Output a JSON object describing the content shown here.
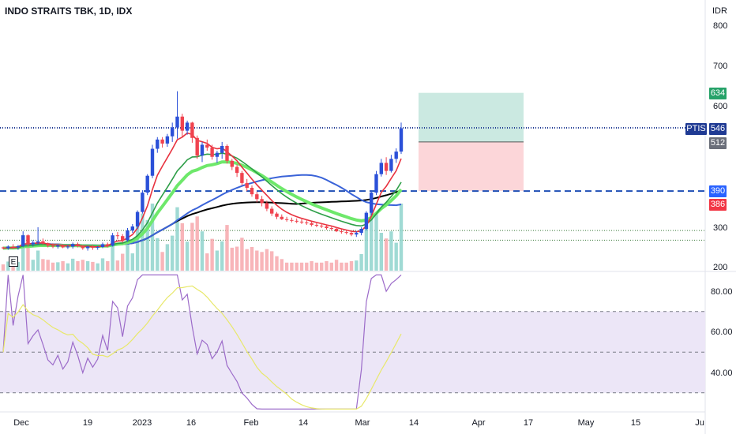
{
  "header": {
    "symbol_title": "INDO STRAITS TBK, 1D, IDX",
    "currency": "IDR"
  },
  "price_axis": {
    "ticks": [
      "800",
      "700",
      "600",
      "300",
      "200"
    ],
    "tick_values": [
      800,
      700,
      600,
      300,
      200
    ]
  },
  "rsi_axis": {
    "ticks": [
      "80.00",
      "60.00",
      "40.00"
    ],
    "tick_values": [
      80,
      60,
      40
    ],
    "upper_band": 70,
    "middle_band": 50,
    "lower_band": 30
  },
  "x_axis": {
    "labels": [
      "Dec",
      "19",
      "2023",
      "16",
      "Feb",
      "14",
      "Mar",
      "14",
      "Apr",
      "17",
      "May",
      "15",
      "Ju"
    ]
  },
  "badges": {
    "target": {
      "text": "634",
      "color": "#26a269"
    },
    "symbol": {
      "text": "PTIS",
      "color": "#1f3a93"
    },
    "last": {
      "text": "546",
      "color": "#1f3a93"
    },
    "entry": {
      "text": "512",
      "color": "#6b6f7a"
    },
    "level": {
      "text": "390",
      "color": "#2962ff"
    },
    "stop": {
      "text": "386",
      "color": "#f23645"
    }
  },
  "marker": {
    "text": "E"
  },
  "colors": {
    "up": "#2b50d8",
    "down": "#f0434f",
    "ema_red": "#e8323f",
    "ema_green": "#2e9e48",
    "sma_blue": "#3a63d8",
    "ema_lightgreen": "#6ee86b",
    "sma_black": "#000000",
    "rsi": "#9c6bc9",
    "rsi_ma": "#e8e86a",
    "rsi_band_fill": "#ece6f7",
    "target_zone": "#cbe9e1",
    "stop_zone": "#fcd6d9",
    "level_line": "#1f4fb5",
    "volume_up": "#8fd3cc",
    "volume_down": "#f7a8ad"
  },
  "chart_data": {
    "type": "candlestick",
    "series": [
      {
        "name": "candles",
        "ohlc": [
          [
            250,
            252,
            245,
            248
          ],
          [
            248,
            255,
            244,
            252
          ],
          [
            252,
            258,
            246,
            250
          ],
          [
            250,
            256,
            244,
            253
          ],
          [
            253,
            290,
            250,
            280
          ],
          [
            280,
            282,
            252,
            258
          ],
          [
            258,
            268,
            252,
            262
          ],
          [
            262,
            300,
            256,
            265
          ],
          [
            265,
            272,
            256,
            260
          ],
          [
            260,
            262,
            250,
            254
          ],
          [
            254,
            260,
            248,
            252
          ],
          [
            252,
            258,
            247,
            255
          ],
          [
            255,
            258,
            248,
            250
          ],
          [
            250,
            256,
            246,
            252
          ],
          [
            252,
            262,
            247,
            258
          ],
          [
            258,
            262,
            250,
            254
          ],
          [
            254,
            256,
            244,
            248
          ],
          [
            248,
            254,
            242,
            252
          ],
          [
            252,
            256,
            244,
            249
          ],
          [
            249,
            254,
            244,
            251
          ],
          [
            251,
            262,
            248,
            258
          ],
          [
            258,
            262,
            250,
            254
          ],
          [
            254,
            286,
            252,
            280
          ],
          [
            280,
            288,
            270,
            278
          ],
          [
            278,
            283,
            262,
            268
          ],
          [
            268,
            298,
            264,
            292
          ],
          [
            292,
            308,
            286,
            302
          ],
          [
            302,
            342,
            296,
            338
          ],
          [
            338,
            392,
            334,
            386
          ],
          [
            386,
            432,
            380,
            428
          ],
          [
            428,
            505,
            422,
            495
          ],
          [
            495,
            524,
            485,
            518
          ],
          [
            518,
            524,
            498,
            508
          ],
          [
            508,
            532,
            500,
            526
          ],
          [
            526,
            560,
            512,
            548
          ],
          [
            548,
            638,
            520,
            575
          ],
          [
            575,
            582,
            525,
            540
          ],
          [
            540,
            565,
            530,
            560
          ],
          [
            560,
            562,
            510,
            522
          ],
          [
            522,
            528,
            470,
            478
          ],
          [
            478,
            512,
            462,
            505
          ],
          [
            505,
            518,
            490,
            498
          ],
          [
            498,
            505,
            468,
            475
          ],
          [
            475,
            490,
            460,
            485
          ],
          [
            485,
            512,
            470,
            502
          ],
          [
            502,
            506,
            458,
            465
          ],
          [
            465,
            470,
            442,
            450
          ],
          [
            450,
            456,
            425,
            435
          ],
          [
            435,
            440,
            404,
            410
          ],
          [
            410,
            420,
            390,
            398
          ],
          [
            398,
            404,
            376,
            382
          ],
          [
            382,
            388,
            362,
            370
          ],
          [
            370,
            378,
            352,
            360
          ],
          [
            360,
            366,
            340,
            346
          ],
          [
            346,
            352,
            328,
            334
          ],
          [
            334,
            338,
            320,
            326
          ],
          [
            326,
            332,
            318,
            320
          ],
          [
            320,
            326,
            314,
            318
          ],
          [
            318,
            324,
            312,
            316
          ],
          [
            316,
            322,
            310,
            314
          ],
          [
            314,
            320,
            308,
            312
          ],
          [
            312,
            318,
            306,
            310
          ],
          [
            310,
            314,
            302,
            306
          ],
          [
            306,
            312,
            300,
            304
          ],
          [
            304,
            310,
            298,
            302
          ],
          [
            302,
            306,
            294,
            298
          ],
          [
            298,
            304,
            292,
            296
          ],
          [
            296,
            300,
            288,
            290
          ],
          [
            290,
            296,
            284,
            288
          ],
          [
            288,
            294,
            282,
            286
          ],
          [
            286,
            290,
            278,
            282
          ],
          [
            282,
            290,
            276,
            286
          ],
          [
            286,
            300,
            280,
            296
          ],
          [
            296,
            340,
            292,
            336
          ],
          [
            336,
            392,
            330,
            386
          ],
          [
            386,
            440,
            380,
            432
          ],
          [
            432,
            470,
            426,
            460
          ],
          [
            460,
            474,
            430,
            440
          ],
          [
            440,
            480,
            436,
            470
          ],
          [
            470,
            496,
            460,
            488
          ],
          [
            488,
            560,
            482,
            546
          ]
        ]
      }
    ]
  }
}
